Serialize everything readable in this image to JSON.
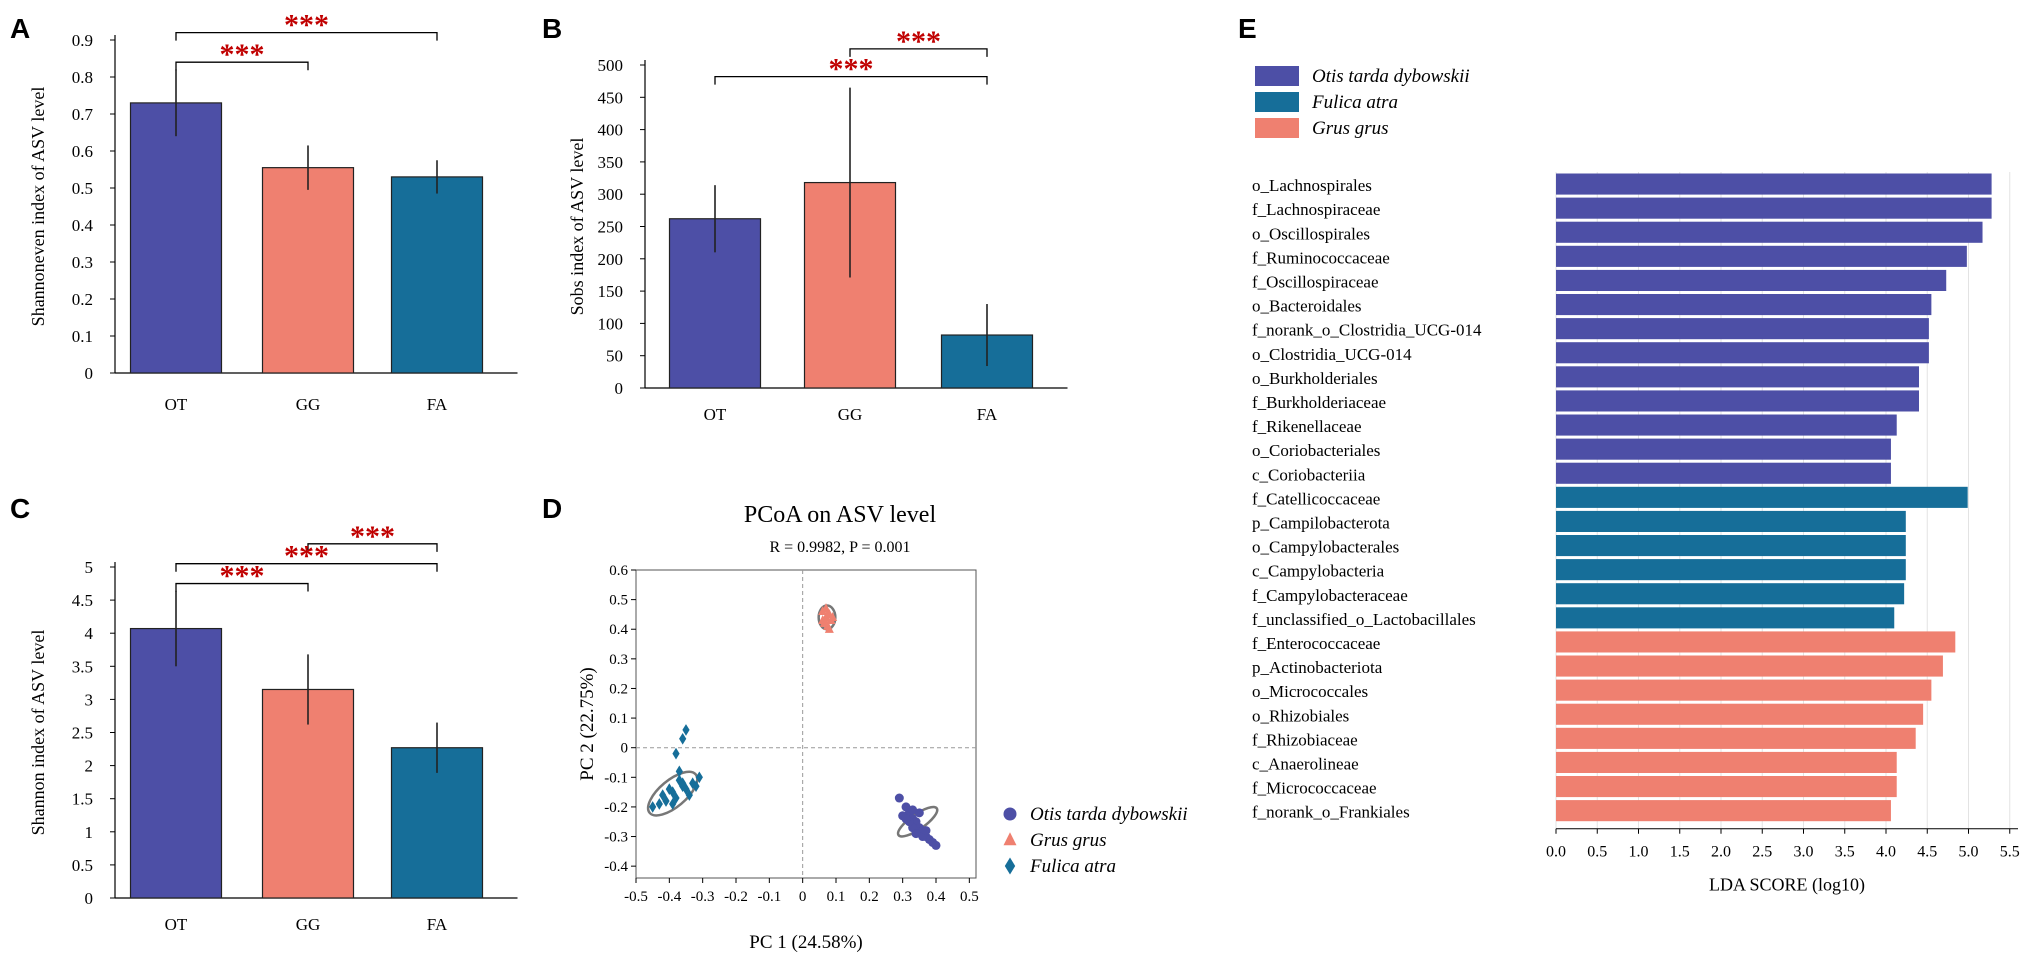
{
  "colors": {
    "OT": "#4d4fa6",
    "GG": "#ef8070",
    "FA": "#166e99",
    "sig": "#c00000"
  },
  "panel_labels": {
    "A": "A",
    "B": "B",
    "C": "C",
    "D": "D",
    "E": "E"
  },
  "chart_data": [
    {
      "id": "A",
      "type": "bar",
      "categories": [
        "OT",
        "GG",
        "FA"
      ],
      "values": [
        0.73,
        0.555,
        0.53
      ],
      "errors": [
        0.09,
        0.06,
        0.045
      ],
      "ylabel": "Shannoneven index of ASV level",
      "ylim": [
        0,
        0.9
      ],
      "yticks": [
        0,
        0.1,
        0.2,
        0.3,
        0.4,
        0.5,
        0.6,
        0.7,
        0.8,
        0.9
      ],
      "ytick_labels": [
        "0",
        "0.1",
        "0.2",
        "0.3",
        "0.4",
        "0.5",
        "0.6",
        "0.7",
        "0.8",
        "0.9"
      ],
      "significance": [
        {
          "from": "OT",
          "to": "FA",
          "label": "***",
          "level": 0.92
        },
        {
          "from": "OT",
          "to": "GG",
          "label": "***",
          "level": 0.84
        }
      ]
    },
    {
      "id": "B",
      "type": "bar",
      "categories": [
        "OT",
        "GG",
        "FA"
      ],
      "values": [
        262,
        318,
        82
      ],
      "errors": [
        52,
        147,
        48
      ],
      "ylabel": "Sobs index of ASV level",
      "ylim": [
        0,
        500
      ],
      "yticks": [
        0,
        50,
        100,
        150,
        200,
        250,
        300,
        350,
        400,
        450,
        500
      ],
      "ytick_labels": [
        "0",
        "50",
        "100",
        "150",
        "200",
        "250",
        "300",
        "350",
        "400",
        "450",
        "500"
      ],
      "significance": [
        {
          "from": "GG",
          "to": "FA",
          "label": "***",
          "level": 525
        },
        {
          "from": "OT",
          "to": "FA",
          "label": "***",
          "level": 482
        }
      ]
    },
    {
      "id": "C",
      "type": "bar",
      "categories": [
        "OT",
        "GG",
        "FA"
      ],
      "values": [
        4.07,
        3.15,
        2.27
      ],
      "errors": [
        0.57,
        0.53,
        0.38
      ],
      "ylabel": "Shannon index of ASV level",
      "ylim": [
        0,
        5
      ],
      "yticks": [
        0,
        0.5,
        1,
        1.5,
        2,
        2.5,
        3,
        3.5,
        4,
        4.5,
        5
      ],
      "ytick_labels": [
        "0",
        "0.5",
        "1",
        "1.5",
        "2",
        "2.5",
        "3",
        "3.5",
        "4",
        "4.5",
        "5"
      ],
      "significance": [
        {
          "from": "GG",
          "to": "FA",
          "label": "***",
          "level": 5.35
        },
        {
          "from": "OT",
          "to": "FA",
          "label": "***",
          "level": 5.05
        },
        {
          "from": "OT",
          "to": "GG",
          "label": "***",
          "level": 4.75
        }
      ]
    },
    {
      "id": "D",
      "type": "scatter",
      "title": "PCoA on ASV level",
      "subtitle": "R = 0.9982, P = 0.001",
      "xlabel": "PC 1 (24.58%)",
      "ylabel": "PC 2 (22.75%)",
      "xlim": [
        -0.5,
        0.52
      ],
      "ylim": [
        -0.44,
        0.6
      ],
      "xticks": [
        -0.5,
        -0.4,
        -0.3,
        -0.2,
        -0.1,
        0,
        0.1,
        0.2,
        0.3,
        0.4,
        0.5
      ],
      "xtick_labels": [
        "-0.5",
        "-0.4",
        "-0.3",
        "-0.2",
        "-0.1",
        "0",
        "0.1",
        "0.2",
        "0.3",
        "0.4",
        "0.5"
      ],
      "yticks": [
        -0.4,
        -0.3,
        -0.2,
        -0.1,
        0,
        0.1,
        0.2,
        0.3,
        0.4,
        0.5,
        0.6
      ],
      "ytick_labels": [
        "-0.4",
        "-0.3",
        "-0.2",
        "-0.1",
        "0",
        "0.1",
        "0.2",
        "0.3",
        "0.4",
        "0.5",
        "0.6"
      ],
      "series": [
        {
          "name": "Otis tarda dybowskii",
          "marker": "circle",
          "color": "#4d4fa6",
          "points": [
            [
              0.29,
              -0.17
            ],
            [
              0.31,
              -0.2
            ],
            [
              0.32,
              -0.22
            ],
            [
              0.3,
              -0.23
            ],
            [
              0.33,
              -0.24
            ],
            [
              0.34,
              -0.25
            ],
            [
              0.35,
              -0.27
            ],
            [
              0.33,
              -0.27
            ],
            [
              0.36,
              -0.28
            ],
            [
              0.37,
              -0.3
            ],
            [
              0.34,
              -0.29
            ],
            [
              0.38,
              -0.31
            ],
            [
              0.39,
              -0.32
            ],
            [
              0.36,
              -0.3
            ],
            [
              0.32,
              -0.25
            ],
            [
              0.35,
              -0.22
            ],
            [
              0.37,
              -0.28
            ],
            [
              0.31,
              -0.24
            ],
            [
              0.4,
              -0.33
            ],
            [
              0.33,
              -0.21
            ]
          ]
        },
        {
          "name": "Grus grus",
          "marker": "triangle",
          "color": "#ef8070",
          "points": [
            [
              0.06,
              0.46
            ],
            [
              0.07,
              0.44
            ],
            [
              0.08,
              0.45
            ],
            [
              0.065,
              0.42
            ],
            [
              0.075,
              0.41
            ],
            [
              0.085,
              0.43
            ],
            [
              0.07,
              0.47
            ],
            [
              0.06,
              0.43
            ],
            [
              0.08,
              0.4
            ],
            [
              0.09,
              0.44
            ],
            [
              0.07,
              0.42
            ],
            [
              0.075,
              0.45
            ]
          ]
        },
        {
          "name": "Fulica atra",
          "marker": "diamond",
          "color": "#166e99",
          "points": [
            [
              -0.36,
              0.03
            ],
            [
              -0.35,
              0.06
            ],
            [
              -0.38,
              -0.02
            ],
            [
              -0.37,
              -0.08
            ],
            [
              -0.36,
              -0.12
            ],
            [
              -0.39,
              -0.15
            ],
            [
              -0.41,
              -0.18
            ],
            [
              -0.43,
              -0.19
            ],
            [
              -0.45,
              -0.2
            ],
            [
              -0.38,
              -0.17
            ],
            [
              -0.35,
              -0.14
            ],
            [
              -0.33,
              -0.12
            ],
            [
              -0.31,
              -0.1
            ],
            [
              -0.34,
              -0.16
            ],
            [
              -0.36,
              -0.13
            ],
            [
              -0.4,
              -0.14
            ],
            [
              -0.32,
              -0.13
            ],
            [
              -0.37,
              -0.11
            ],
            [
              -0.39,
              -0.19
            ],
            [
              -0.42,
              -0.16
            ]
          ]
        }
      ],
      "ellipses": [
        {
          "group": "Otis tarda dybowskii",
          "cx": 0.345,
          "cy": -0.25,
          "rx": 0.07,
          "ry": 0.025,
          "angle_deg": -35
        },
        {
          "group": "Grus grus",
          "cx": 0.073,
          "cy": 0.44,
          "rx": 0.025,
          "ry": 0.04,
          "angle_deg": 0
        },
        {
          "group": "Fulica atra",
          "cx": -0.39,
          "cy": -0.155,
          "rx": 0.09,
          "ry": 0.045,
          "angle_deg": -40
        }
      ],
      "legend": [
        "Otis tarda dybowskii",
        "Grus grus",
        "Fulica atra"
      ]
    },
    {
      "id": "E",
      "type": "bar",
      "orientation": "horizontal",
      "xlabel": "LDA SCORE (log10)",
      "xlim": [
        0,
        5.6
      ],
      "xticks": [
        0,
        0.5,
        1,
        1.5,
        2,
        2.5,
        3,
        3.5,
        4,
        4.5,
        5,
        5.5
      ],
      "xtick_labels": [
        "0.0",
        "0.5",
        "1.0",
        "1.5",
        "2.0",
        "2.5",
        "3.0",
        "3.5",
        "4.0",
        "4.5",
        "5.0",
        "5.5"
      ],
      "legend": [
        {
          "name": "Otis tarda dybowskii",
          "key": "OT"
        },
        {
          "name": "Fulica atra",
          "key": "FA"
        },
        {
          "name": "Grus grus",
          "key": "GG"
        }
      ],
      "bars": [
        {
          "label": "o_Lachnospirales",
          "value": 5.28,
          "group": "OT"
        },
        {
          "label": "f_Lachnospiraceae",
          "value": 5.28,
          "group": "OT"
        },
        {
          "label": "o_Oscillospirales",
          "value": 5.17,
          "group": "OT"
        },
        {
          "label": "f_Ruminococcaceae",
          "value": 4.98,
          "group": "OT"
        },
        {
          "label": "f_Oscillospiraceae",
          "value": 4.73,
          "group": "OT"
        },
        {
          "label": "o_Bacteroidales",
          "value": 4.55,
          "group": "OT"
        },
        {
          "label": "f_norank_o_Clostridia_UCG-014",
          "value": 4.52,
          "group": "OT"
        },
        {
          "label": "o_Clostridia_UCG-014",
          "value": 4.52,
          "group": "OT"
        },
        {
          "label": "o_Burkholderiales",
          "value": 4.4,
          "group": "OT"
        },
        {
          "label": "f_Burkholderiaceae",
          "value": 4.4,
          "group": "OT"
        },
        {
          "label": "f_Rikenellaceae",
          "value": 4.13,
          "group": "OT"
        },
        {
          "label": "o_Coriobacteriales",
          "value": 4.06,
          "group": "OT"
        },
        {
          "label": "c_Coriobacteriia",
          "value": 4.06,
          "group": "OT"
        },
        {
          "label": "f_Catellicoccaceae",
          "value": 4.99,
          "group": "FA"
        },
        {
          "label": "p_Campilobacterota",
          "value": 4.24,
          "group": "FA"
        },
        {
          "label": "o_Campylobacterales",
          "value": 4.24,
          "group": "FA"
        },
        {
          "label": "c_Campylobacteria",
          "value": 4.24,
          "group": "FA"
        },
        {
          "label": "f_Campylobacteraceae",
          "value": 4.22,
          "group": "FA"
        },
        {
          "label": "f_unclassified_o_Lactobacillales",
          "value": 4.1,
          "group": "FA"
        },
        {
          "label": "f_Enterococcaceae",
          "value": 4.84,
          "group": "GG"
        },
        {
          "label": "p_Actinobacteriota",
          "value": 4.69,
          "group": "GG"
        },
        {
          "label": "o_Micrococcales",
          "value": 4.55,
          "group": "GG"
        },
        {
          "label": "o_Rhizobiales",
          "value": 4.45,
          "group": "GG"
        },
        {
          "label": "f_Rhizobiaceae",
          "value": 4.36,
          "group": "GG"
        },
        {
          "label": "c_Anaerolineae",
          "value": 4.13,
          "group": "GG"
        },
        {
          "label": "f_Micrococcaceae",
          "value": 4.13,
          "group": "GG"
        },
        {
          "label": "f_norank_o_Frankiales",
          "value": 4.06,
          "group": "GG"
        }
      ]
    }
  ]
}
